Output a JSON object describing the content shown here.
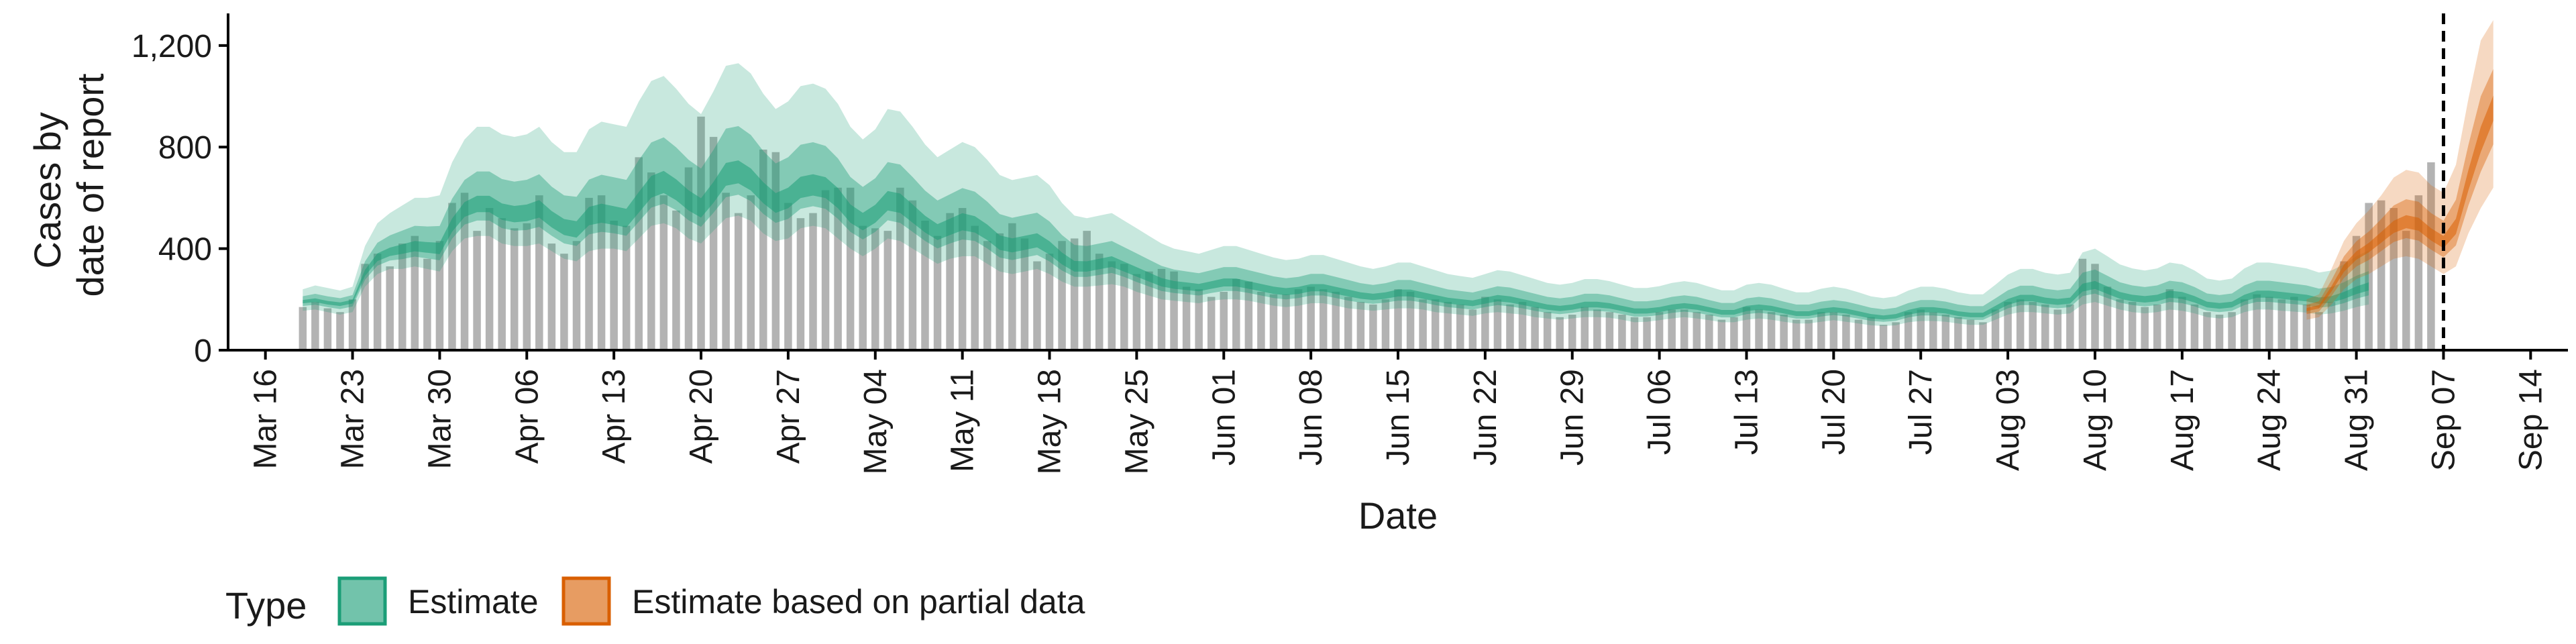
{
  "chart_data": {
    "type": "bar",
    "xlabel": "Date",
    "ylabel_lines": [
      "Cases by",
      "date of report"
    ],
    "ylim": [
      0,
      1300
    ],
    "yticks": [
      0,
      400,
      800,
      1200
    ],
    "ytick_labels": [
      "0",
      "400",
      "800",
      "1,200"
    ],
    "xlim": [
      "2020-03-13",
      "2020-09-17"
    ],
    "xtick_dates": [
      "2020-03-16",
      "2020-03-23",
      "2020-03-30",
      "2020-04-06",
      "2020-04-13",
      "2020-04-20",
      "2020-04-27",
      "2020-05-04",
      "2020-05-11",
      "2020-05-18",
      "2020-05-25",
      "2020-06-01",
      "2020-06-08",
      "2020-06-15",
      "2020-06-22",
      "2020-06-29",
      "2020-07-06",
      "2020-07-13",
      "2020-07-20",
      "2020-07-27",
      "2020-08-03",
      "2020-08-10",
      "2020-08-17",
      "2020-08-24",
      "2020-08-31",
      "2020-09-07",
      "2020-09-14"
    ],
    "xtick_labels": [
      "Mar 16",
      "Mar 23",
      "Mar 30",
      "Apr 06",
      "Apr 13",
      "Apr 20",
      "Apr 27",
      "May 04",
      "May 11",
      "May 18",
      "May 25",
      "Jun 01",
      "Jun 08",
      "Jun 15",
      "Jun 22",
      "Jun 29",
      "Jul 06",
      "Jul 13",
      "Jul 20",
      "Jul 27",
      "Aug 03",
      "Aug 10",
      "Aug 17",
      "Aug 24",
      "Aug 31",
      "Sep 07",
      "Sep 14"
    ],
    "vline_date": "2020-09-07",
    "grid": false,
    "legend_position": "bottom",
    "legend": {
      "title": "Type",
      "entries": [
        {
          "label": "Estimate",
          "color": "#1b9e77"
        },
        {
          "label": "Estimate based on partial data",
          "color": "#d95f02"
        }
      ]
    },
    "bars": {
      "start_date": "2020-03-19",
      "color": "#a6a6a6",
      "values": [
        170,
        190,
        165,
        150,
        200,
        340,
        380,
        330,
        420,
        450,
        360,
        430,
        580,
        620,
        470,
        560,
        520,
        480,
        500,
        610,
        420,
        380,
        430,
        600,
        610,
        510,
        490,
        760,
        700,
        610,
        550,
        720,
        920,
        840,
        620,
        540,
        610,
        790,
        780,
        580,
        520,
        540,
        630,
        640,
        640,
        490,
        480,
        470,
        640,
        590,
        510,
        450,
        540,
        560,
        490,
        430,
        460,
        500,
        440,
        350,
        380,
        430,
        440,
        470,
        380,
        350,
        340,
        300,
        310,
        320,
        310,
        250,
        240,
        210,
        230,
        280,
        270,
        230,
        220,
        220,
        240,
        250,
        240,
        230,
        210,
        190,
        180,
        200,
        240,
        230,
        200,
        200,
        190,
        180,
        160,
        210,
        200,
        180,
        190,
        170,
        150,
        130,
        140,
        170,
        160,
        150,
        140,
        130,
        130,
        150,
        160,
        160,
        150,
        140,
        120,
        130,
        170,
        160,
        150,
        140,
        120,
        120,
        150,
        150,
        140,
        120,
        130,
        100,
        110,
        150,
        160,
        150,
        140,
        130,
        120,
        110,
        160,
        190,
        200,
        190,
        180,
        160,
        180,
        360,
        340,
        250,
        200,
        190,
        170,
        180,
        240,
        210,
        180,
        150,
        140,
        150,
        200,
        220,
        210,
        200,
        210,
        180,
        150,
        190,
        350,
        450,
        580,
        590,
        560,
        470,
        610,
        740
      ]
    },
    "series": [
      {
        "name": "Estimate",
        "color": "#1b9e77",
        "start_date": "2020-03-19",
        "median": [
          190,
          195,
          185,
          180,
          190,
          300,
          360,
          380,
          390,
          400,
          395,
          390,
          480,
          540,
          560,
          560,
          530,
          520,
          525,
          540,
          500,
          470,
          460,
          510,
          520,
          510,
          500,
          560,
          620,
          640,
          610,
          570,
          540,
          600,
          670,
          680,
          650,
          600,
          560,
          580,
          620,
          630,
          620,
          580,
          520,
          490,
          520,
          570,
          560,
          520,
          480,
          450,
          470,
          490,
          480,
          450,
          410,
          400,
          410,
          420,
          390,
          350,
          320,
          320,
          330,
          340,
          320,
          300,
          280,
          260,
          250,
          245,
          240,
          250,
          260,
          260,
          250,
          240,
          230,
          225,
          230,
          240,
          240,
          230,
          220,
          210,
          205,
          210,
          220,
          220,
          210,
          200,
          190,
          185,
          180,
          190,
          200,
          195,
          185,
          175,
          165,
          160,
          165,
          175,
          175,
          170,
          160,
          150,
          150,
          155,
          165,
          170,
          165,
          155,
          145,
          145,
          160,
          165,
          160,
          150,
          140,
          140,
          150,
          155,
          150,
          140,
          130,
          125,
          130,
          145,
          155,
          155,
          150,
          140,
          135,
          135,
          160,
          185,
          200,
          200,
          190,
          185,
          190,
          240,
          250,
          230,
          210,
          200,
          195,
          200,
          215,
          210,
          195,
          175,
          170,
          175,
          200,
          215,
          215,
          210,
          205,
          200,
          190,
          195,
          210,
          230,
          245
        ],
        "lower90": [
          155,
          160,
          150,
          140,
          150,
          250,
          300,
          320,
          320,
          330,
          320,
          310,
          390,
          440,
          450,
          450,
          420,
          410,
          410,
          420,
          390,
          360,
          350,
          390,
          400,
          400,
          390,
          440,
          490,
          500,
          480,
          440,
          420,
          470,
          520,
          530,
          510,
          460,
          430,
          440,
          480,
          490,
          480,
          440,
          400,
          370,
          400,
          440,
          430,
          400,
          370,
          340,
          360,
          370,
          370,
          340,
          310,
          300,
          310,
          320,
          300,
          270,
          250,
          250,
          255,
          260,
          250,
          230,
          215,
          200,
          195,
          190,
          185,
          195,
          200,
          200,
          195,
          185,
          175,
          170,
          175,
          185,
          185,
          175,
          165,
          160,
          155,
          160,
          165,
          165,
          160,
          150,
          145,
          140,
          135,
          145,
          150,
          145,
          140,
          130,
          125,
          120,
          125,
          130,
          130,
          128,
          120,
          110,
          112,
          118,
          125,
          130,
          125,
          118,
          110,
          110,
          120,
          125,
          120,
          112,
          105,
          105,
          112,
          118,
          112,
          105,
          98,
          95,
          98,
          110,
          115,
          115,
          112,
          105,
          100,
          100,
          120,
          140,
          150,
          150,
          145,
          140,
          145,
          180,
          190,
          175,
          160,
          150,
          145,
          150,
          160,
          155,
          145,
          130,
          125,
          130,
          150,
          160,
          160,
          155,
          152,
          148,
          140,
          145,
          155,
          170,
          180
        ],
        "upper90": [
          240,
          255,
          245,
          235,
          250,
          410,
          500,
          540,
          570,
          600,
          600,
          610,
          740,
          830,
          880,
          880,
          850,
          840,
          850,
          880,
          820,
          780,
          780,
          870,
          900,
          890,
          880,
          980,
          1060,
          1080,
          1030,
          970,
          930,
          1020,
          1120,
          1130,
          1090,
          1010,
          950,
          980,
          1040,
          1050,
          1030,
          970,
          880,
          830,
          870,
          950,
          940,
          880,
          810,
          760,
          790,
          820,
          800,
          750,
          690,
          670,
          680,
          690,
          650,
          580,
          530,
          520,
          530,
          540,
          510,
          480,
          450,
          420,
          400,
          390,
          380,
          395,
          410,
          410,
          395,
          380,
          365,
          355,
          360,
          375,
          375,
          360,
          345,
          330,
          320,
          330,
          345,
          345,
          330,
          315,
          300,
          292,
          285,
          300,
          315,
          310,
          295,
          280,
          265,
          258,
          265,
          280,
          280,
          272,
          258,
          245,
          245,
          252,
          265,
          272,
          265,
          250,
          236,
          236,
          258,
          265,
          258,
          242,
          228,
          228,
          242,
          250,
          242,
          228,
          212,
          205,
          212,
          235,
          250,
          250,
          242,
          228,
          220,
          220,
          258,
          298,
          320,
          320,
          305,
          298,
          305,
          385,
          400,
          370,
          338,
          322,
          314,
          322,
          345,
          338,
          314,
          282,
          274,
          282,
          322,
          345,
          345,
          338,
          330,
          322,
          306,
          314,
          338,
          370,
          393
        ]
      },
      {
        "name": "Estimate based on partial data",
        "color": "#d95f02",
        "start_date": "2020-08-27",
        "median": [
          160,
          170,
          240,
          320,
          370,
          400,
          440,
          480,
          500,
          490,
          450,
          420,
          480,
          660,
          820,
          950
        ],
        "lower90": [
          120,
          130,
          180,
          240,
          280,
          300,
          330,
          360,
          370,
          360,
          330,
          300,
          330,
          460,
          560,
          640
        ],
        "upper90": [
          200,
          220,
          320,
          430,
          500,
          550,
          610,
          680,
          710,
          700,
          650,
          620,
          730,
          990,
          1220,
          1300
        ]
      }
    ]
  }
}
